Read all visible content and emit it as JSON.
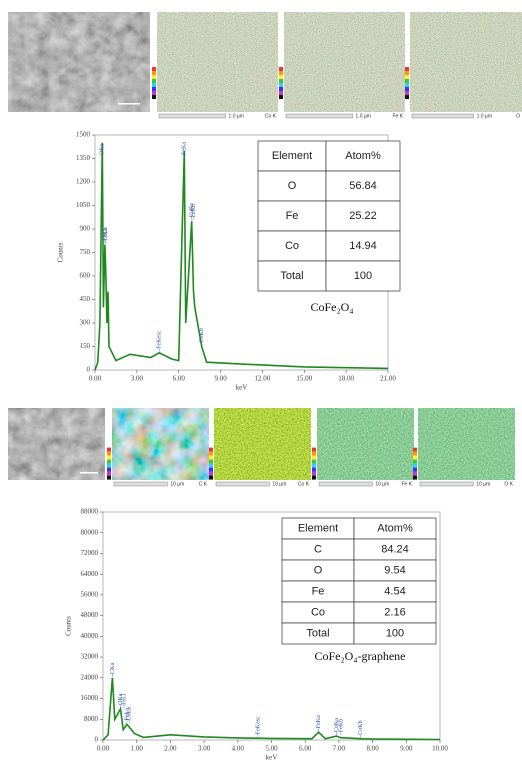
{
  "map_rows": [
    [
      {
        "scale": "1.0 µm",
        "element": "Co K"
      },
      {
        "scale": "1.0 µm",
        "element": "Fe K"
      },
      {
        "scale": "1.0 µm",
        "element": "O"
      }
    ],
    [
      {
        "scale": "10 µm",
        "element": "C K"
      },
      {
        "scale": "10 µm",
        "element": "Co K"
      },
      {
        "scale": "10 µm",
        "element": "Fe K"
      },
      {
        "scale": "10 µm",
        "element": "O K"
      }
    ]
  ],
  "chart_data": [
    {
      "type": "line",
      "xlabel": "keV",
      "ylabel": "Counts",
      "color": "#1e8a1e",
      "x": [
        0,
        0.2,
        0.35,
        0.52,
        0.6,
        0.71,
        0.78,
        0.85,
        0.93,
        1.0,
        1.5,
        2.5,
        4,
        4.6,
        5.5,
        6.0,
        6.4,
        6.5,
        6.93,
        7.06,
        7.15,
        7.65,
        8,
        10,
        15,
        21
      ],
      "values": [
        0,
        50,
        300,
        1450,
        400,
        800,
        600,
        300,
        500,
        150,
        60,
        100,
        80,
        110,
        70,
        60,
        1400,
        300,
        950,
        500,
        400,
        150,
        50,
        40,
        20,
        10
      ],
      "xlim": [
        0,
        21
      ],
      "ylim": [
        0,
        1500
      ],
      "xticks": [
        {
          "value": 0,
          "label": "0.00"
        },
        {
          "value": 3,
          "label": "3.00"
        },
        {
          "value": 6,
          "label": "6.00"
        },
        {
          "value": 9,
          "label": "9.00"
        },
        {
          "value": 12,
          "label": "12.00"
        },
        {
          "value": 15,
          "label": "15.00"
        },
        {
          "value": 18,
          "label": "18.00"
        },
        {
          "value": 21,
          "label": "21.00"
        }
      ],
      "yticks": [
        0,
        150,
        300,
        450,
        600,
        750,
        900,
        1050,
        1200,
        1350,
        1500
      ],
      "peaks": [
        {
          "label": "OKa",
          "x": 0.52
        },
        {
          "label": "FeLa",
          "x": 0.71
        },
        {
          "label": "CoLa",
          "x": 0.78
        },
        {
          "label": "FeKesc",
          "x": 4.6
        },
        {
          "label": "FeKa",
          "x": 6.4
        },
        {
          "label": "CoKa",
          "x": 6.93
        },
        {
          "label": "FeKb",
          "x": 7.06
        },
        {
          "label": "CoKb",
          "x": 7.65
        }
      ],
      "table": {
        "header": [
          "Element",
          "Atom%"
        ],
        "rows": [
          [
            "O",
            56.84
          ],
          [
            "Fe",
            25.22
          ],
          [
            "Co",
            14.94
          ],
          [
            "Total",
            100
          ]
        ]
      },
      "sample": "CoFe₂O₄"
    },
    {
      "type": "line",
      "xlabel": "keV",
      "ylabel": "Counts",
      "color": "#1e8a1e",
      "x": [
        0,
        0.15,
        0.28,
        0.35,
        0.52,
        0.6,
        0.71,
        0.78,
        0.93,
        1.2,
        2,
        3,
        4,
        4.6,
        5,
        6.2,
        6.4,
        6.6,
        6.93,
        7.06,
        7.65,
        8,
        10
      ],
      "values": [
        0,
        2000,
        24000,
        8000,
        12000,
        4000,
        6000,
        5000,
        2500,
        1000,
        2000,
        1200,
        800,
        700,
        600,
        500,
        3000,
        500,
        1500,
        900,
        500,
        400,
        200
      ],
      "xlim": [
        0,
        10
      ],
      "ylim": [
        0,
        88000
      ],
      "xticks": [
        {
          "value": 0,
          "label": "0.00"
        },
        {
          "value": 1,
          "label": "1.00"
        },
        {
          "value": 2,
          "label": "2.00"
        },
        {
          "value": 3,
          "label": "3.00"
        },
        {
          "value": 4,
          "label": "4.00"
        },
        {
          "value": 5,
          "label": "5.00"
        },
        {
          "value": 6,
          "label": "6.00"
        },
        {
          "value": 7,
          "label": "7.00"
        },
        {
          "value": 8,
          "label": "8.00"
        },
        {
          "value": 9,
          "label": "9.00"
        },
        {
          "value": 10,
          "label": "10.00"
        }
      ],
      "yticks": [
        0,
        8000,
        16000,
        24000,
        32000,
        40000,
        48000,
        56000,
        64000,
        72000,
        80000,
        88000
      ],
      "peaks": [
        {
          "label": "CKa",
          "x": 0.28
        },
        {
          "label": "OKa",
          "x": 0.52
        },
        {
          "label": "FeLl",
          "x": 0.62
        },
        {
          "label": "FeLa",
          "x": 0.71
        },
        {
          "label": "CoLa",
          "x": 0.78
        },
        {
          "label": "FeKesc",
          "x": 4.6
        },
        {
          "label": "FeKa",
          "x": 6.4
        },
        {
          "label": "CoKa",
          "x": 6.93
        },
        {
          "label": "FeKb",
          "x": 7.06
        },
        {
          "label": "CoKb",
          "x": 7.65
        }
      ],
      "table": {
        "header": [
          "Element",
          "Atom%"
        ],
        "rows": [
          [
            "C",
            84.24
          ],
          [
            "O",
            9.54
          ],
          [
            "Fe",
            4.54
          ],
          [
            "Co",
            2.16
          ],
          [
            "Total",
            100
          ]
        ]
      },
      "sample": "CoFe₂O₄-graphene"
    }
  ]
}
